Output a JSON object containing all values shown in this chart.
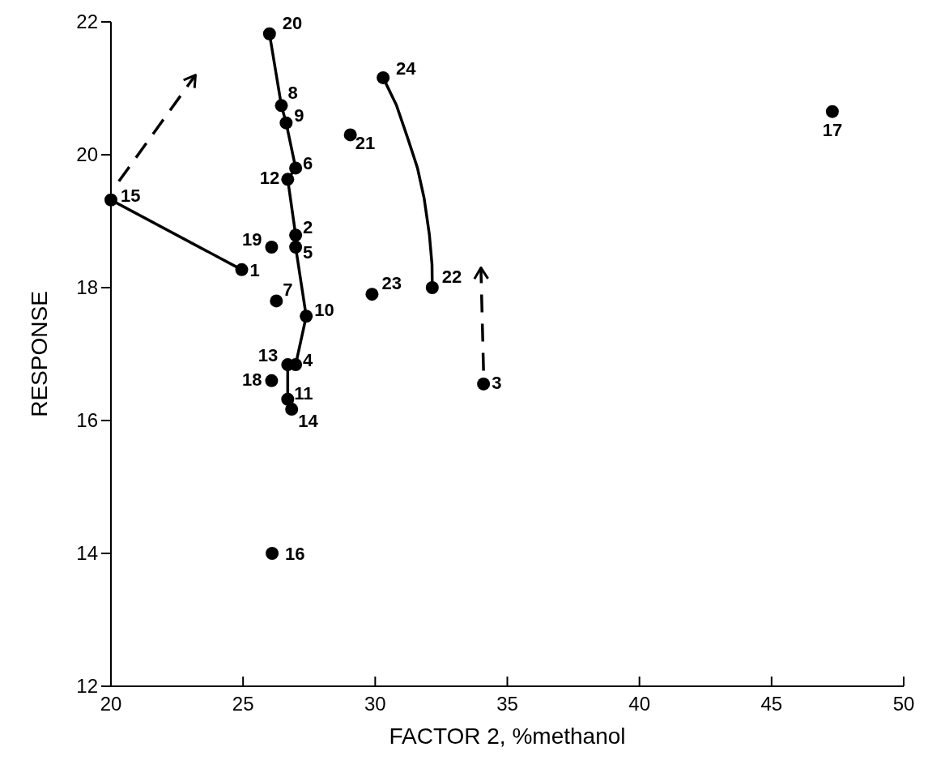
{
  "chart_data": {
    "type": "scatter",
    "xlabel": "FACTOR 2, %methanol",
    "ylabel": "RESPONSE",
    "xlim": [
      20,
      50
    ],
    "ylim": [
      12,
      22
    ],
    "xticks": [
      20,
      25,
      30,
      35,
      40,
      45,
      50
    ],
    "yticks": [
      12,
      14,
      16,
      18,
      20,
      22
    ],
    "marker": "circle",
    "series": [
      {
        "color": "#000000",
        "x": [
          24.95,
          26.99,
          34.1,
          26.99,
          26.99,
          26.99,
          26.26,
          26.45,
          26.63,
          27.39,
          26.69,
          26.69,
          26.69,
          26.84,
          20.0,
          26.1,
          47.3,
          26.08,
          26.08,
          26.0,
          29.06,
          32.16,
          29.88,
          30.3
        ],
        "values": [
          18.27,
          18.79,
          16.55,
          16.84,
          18.61,
          19.8,
          17.8,
          20.74,
          20.48,
          17.57,
          16.32,
          19.63,
          16.84,
          16.17,
          19.32,
          14.0,
          20.65,
          16.6,
          18.61,
          21.82,
          20.3,
          18.0,
          17.9,
          21.16
        ]
      },
      {
        "type": "line",
        "color": "#000000",
        "line_style": "solid",
        "marker": "none",
        "x": [
          26.0,
          26.45,
          26.63,
          26.99,
          26.69,
          26.99,
          26.99,
          27.39,
          26.99,
          26.69,
          26.69,
          26.84
        ],
        "values": [
          21.82,
          20.74,
          20.48,
          19.8,
          19.63,
          18.79,
          18.61,
          17.57,
          16.84,
          16.84,
          16.32,
          16.17
        ]
      },
      {
        "type": "line",
        "color": "#000000",
        "line_style": "solid",
        "marker": "none",
        "x": [
          20.0,
          24.95
        ],
        "values": [
          19.32,
          18.27
        ]
      },
      {
        "type": "line",
        "color": "#000000",
        "line_style": "solid",
        "marker": "none",
        "x": [
          30.3,
          30.8,
          31.24,
          31.6,
          31.85,
          32.05,
          32.15,
          32.16
        ],
        "values": [
          21.16,
          20.75,
          20.24,
          19.8,
          19.35,
          18.8,
          18.35,
          18.0
        ]
      }
    ],
    "annotations": [
      {
        "text": "1",
        "x": 24.95,
        "y": 18.27
      },
      {
        "text": "2",
        "x": 26.99,
        "y": 18.79
      },
      {
        "text": "3",
        "x": 34.1,
        "y": 16.55
      },
      {
        "text": "4",
        "x": 26.99,
        "y": 16.84
      },
      {
        "text": "5",
        "x": 26.99,
        "y": 18.61
      },
      {
        "text": "6",
        "x": 26.99,
        "y": 19.8
      },
      {
        "text": "7",
        "x": 26.26,
        "y": 17.8
      },
      {
        "text": "8",
        "x": 26.45,
        "y": 20.74
      },
      {
        "text": "9",
        "x": 26.63,
        "y": 20.48
      },
      {
        "text": "10",
        "x": 27.39,
        "y": 17.57
      },
      {
        "text": "11",
        "x": 26.69,
        "y": 16.32
      },
      {
        "text": "12",
        "x": 26.69,
        "y": 19.63
      },
      {
        "text": "13",
        "x": 26.69,
        "y": 16.84
      },
      {
        "text": "14",
        "x": 26.84,
        "y": 16.17
      },
      {
        "text": "15",
        "x": 20.0,
        "y": 19.32
      },
      {
        "text": "16",
        "x": 26.1,
        "y": 14.0
      },
      {
        "text": "17",
        "x": 47.3,
        "y": 20.65
      },
      {
        "text": "18",
        "x": 26.08,
        "y": 16.6
      },
      {
        "text": "19",
        "x": 26.08,
        "y": 18.61
      },
      {
        "text": "20",
        "x": 26.0,
        "y": 21.82
      },
      {
        "text": "21",
        "x": 29.06,
        "y": 20.3
      },
      {
        "text": "22",
        "x": 32.16,
        "y": 18.0
      },
      {
        "text": "23",
        "x": 29.88,
        "y": 17.9
      },
      {
        "text": "24",
        "x": 30.3,
        "y": 21.16
      }
    ]
  }
}
